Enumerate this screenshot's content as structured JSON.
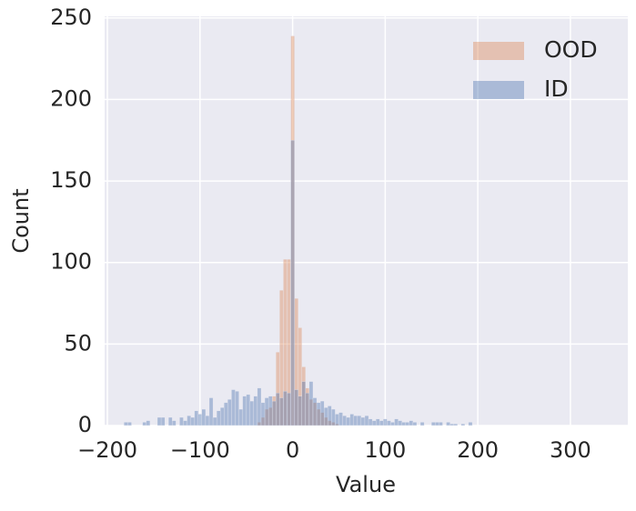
{
  "chart_data": {
    "type": "histogram",
    "xlabel": "Value",
    "ylabel": "Count",
    "xlim": [
      -203,
      362
    ],
    "ylim": [
      0,
      251
    ],
    "xticks": [
      {
        "value": -200,
        "label": "−200"
      },
      {
        "value": -100,
        "label": "−100"
      },
      0,
      100,
      200,
      300
    ],
    "yticks": [
      0,
      50,
      100,
      150,
      200,
      250
    ],
    "grid": true,
    "legend": "upper right",
    "series": [
      {
        "name": "OOD",
        "color": "#dd8452",
        "bins": [
          -38,
          -34,
          -30,
          -26,
          -22,
          -18,
          -14,
          -10,
          -6,
          -2,
          2,
          6,
          10,
          14,
          18,
          22,
          26,
          30,
          34,
          38,
          42,
          46,
          50
        ],
        "values": [
          2,
          5,
          10,
          11,
          18,
          45,
          83,
          102,
          102,
          239,
          78,
          60,
          36,
          23,
          16,
          14,
          10,
          8,
          5,
          3,
          2,
          1
        ]
      },
      {
        "name": "ID",
        "color": "#4c72b0",
        "bins": [
          -190,
          -186,
          -182,
          -178,
          -174,
          -170,
          -166,
          -162,
          -158,
          -154,
          -150,
          -146,
          -142,
          -138,
          -134,
          -130,
          -126,
          -122,
          -118,
          -114,
          -110,
          -106,
          -102,
          -98,
          -94,
          -90,
          -86,
          -82,
          -78,
          -74,
          -70,
          -66,
          -62,
          -58,
          -54,
          -50,
          -46,
          -42,
          -38,
          -34,
          -30,
          -26,
          -22,
          -18,
          -14,
          -10,
          -6,
          -2,
          2,
          6,
          10,
          14,
          18,
          22,
          26,
          30,
          34,
          38,
          42,
          46,
          50,
          54,
          58,
          62,
          66,
          70,
          74,
          78,
          82,
          86,
          90,
          94,
          98,
          102,
          106,
          110,
          114,
          118,
          122,
          126,
          130,
          134,
          138,
          142,
          146,
          150,
          154,
          158,
          162,
          166,
          170,
          174,
          178,
          182,
          186,
          190,
          194,
          198
        ],
        "values": [
          0,
          0,
          2,
          2,
          0,
          0,
          0,
          2,
          3,
          0,
          0,
          5,
          5,
          0,
          5,
          3,
          0,
          5,
          3,
          6,
          5,
          9,
          7,
          10,
          6,
          17,
          5,
          9,
          11,
          14,
          16,
          22,
          21,
          10,
          18,
          19,
          15,
          18,
          23,
          14,
          17,
          18,
          15,
          20,
          17,
          21,
          20,
          175,
          22,
          18,
          27,
          20,
          27,
          17,
          14,
          15,
          11,
          12,
          10,
          7,
          8,
          6,
          5,
          7,
          6,
          6,
          5,
          6,
          4,
          3,
          4,
          3,
          4,
          3,
          2,
          4,
          3,
          2,
          2,
          3,
          2,
          0,
          2,
          0,
          0,
          2,
          2,
          2,
          0,
          2,
          1,
          1,
          0,
          1,
          0,
          2,
          0
        ]
      }
    ]
  }
}
